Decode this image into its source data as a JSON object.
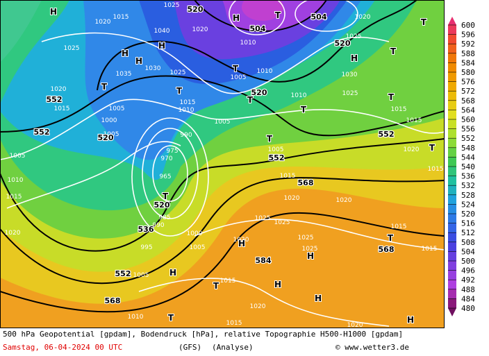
{
  "caption": {
    "description": "500 hPa Geopotential [gpdam], Bodendruck [hPa], relative Topographie H500-H1000 [gpdam]",
    "date": "Samstag, 06-04-2024  00 UTC",
    "model": "(GFS)",
    "run_type": "(Analyse)",
    "credit": "© www.wetter3.de"
  },
  "legend": {
    "ticks": [
      600,
      596,
      592,
      588,
      584,
      580,
      576,
      572,
      568,
      564,
      560,
      556,
      552,
      548,
      544,
      540,
      536,
      532,
      528,
      524,
      520,
      516,
      512,
      508,
      504,
      500,
      496,
      492,
      488,
      484,
      480
    ]
  },
  "geopotential_labels": [
    552,
    552,
    520,
    520,
    504,
    504,
    520,
    520,
    552,
    552,
    568,
    520,
    536,
    568,
    584,
    552,
    568
  ],
  "pressure_labels": [
    1025,
    1020,
    1015,
    1005,
    1010,
    1015,
    1020,
    1005,
    1000,
    1005,
    990,
    975,
    970,
    965,
    985,
    990,
    995,
    1000,
    1005,
    1005,
    1010,
    1015,
    1020,
    1015,
    1020,
    1025,
    1025,
    1020,
    1015,
    1005,
    1005,
    1010,
    1015,
    1010,
    1010,
    1005,
    1010,
    1020,
    1025,
    1030,
    1025,
    1020,
    1015,
    1015,
    1020,
    1015,
    1020,
    1015,
    1015,
    1025,
    1025,
    1020,
    1035,
    1030,
    1025,
    1040,
    1025,
    1020,
    1015
  ],
  "pressure_centers": [
    "H",
    "H",
    "H",
    "H",
    "H",
    "T",
    "T",
    "T",
    "H",
    "T",
    "T",
    "T",
    "T",
    "T",
    "T",
    "T",
    "T",
    "T",
    "H",
    "H",
    "H",
    "T",
    "H",
    "H",
    "T",
    "H",
    "T"
  ]
}
